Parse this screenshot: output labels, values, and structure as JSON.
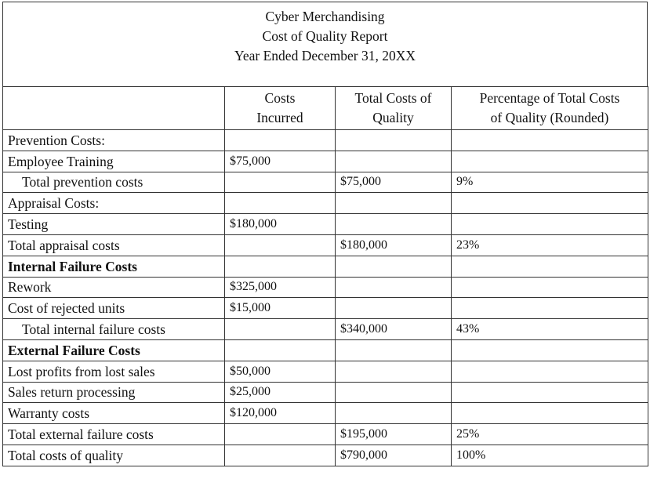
{
  "title": {
    "company": "Cyber Merchandising",
    "report": "Cost of Quality Report",
    "period": "Year Ended December 31, 20XX"
  },
  "columns": [
    "",
    "Costs Incurred",
    "Total Costs of Quality",
    "Percentage of Total Costs of Quality (Rounded)"
  ],
  "columns_lines": [
    [
      "",
      ""
    ],
    [
      "Costs",
      "Incurred"
    ],
    [
      "Total Costs of",
      "Quality"
    ],
    [
      "Percentage of Total Costs",
      "of Quality (Rounded)"
    ]
  ],
  "rows": [
    {
      "label": "Prevention Costs:",
      "incurred": "",
      "total": "",
      "pct": "",
      "style": "section"
    },
    {
      "label": "Employee Training",
      "incurred": "$75,000",
      "total": "",
      "pct": "",
      "style": ""
    },
    {
      "label": "Total prevention costs",
      "incurred": "",
      "total": "$75,000",
      "pct": "9%",
      "style": "indent"
    },
    {
      "label": "Appraisal Costs:",
      "incurred": "",
      "total": "",
      "pct": "",
      "style": "section"
    },
    {
      "label": "Testing",
      "incurred": "$180,000",
      "total": "",
      "pct": "",
      "style": ""
    },
    {
      "label": "Total appraisal costs",
      "incurred": "",
      "total": "$180,000",
      "pct": "23%",
      "style": ""
    },
    {
      "label": "Internal Failure Costs",
      "incurred": "",
      "total": "",
      "pct": "",
      "style": "bold"
    },
    {
      "label": "Rework",
      "incurred": "$325,000",
      "total": "",
      "pct": "",
      "style": ""
    },
    {
      "label": "Cost of rejected units",
      "incurred": "$15,000",
      "total": "",
      "pct": "",
      "style": ""
    },
    {
      "label": "Total internal failure costs",
      "incurred": "",
      "total": "$340,000",
      "pct": "43%",
      "style": "indent"
    },
    {
      "label": "External Failure Costs",
      "incurred": "",
      "total": "",
      "pct": "",
      "style": "bold"
    },
    {
      "label": "Lost profits from lost sales",
      "incurred": "$50,000",
      "total": "",
      "pct": "",
      "style": ""
    },
    {
      "label": "Sales return processing",
      "incurred": "$25,000",
      "total": "",
      "pct": "",
      "style": ""
    },
    {
      "label": "Warranty costs",
      "incurred": "$120,000",
      "total": "",
      "pct": "",
      "style": ""
    },
    {
      "label": "Total external failure costs",
      "incurred": "",
      "total": "$195,000",
      "pct": "25%",
      "style": ""
    },
    {
      "label": "Total costs of quality",
      "incurred": "",
      "total": "$790,000",
      "pct": "100%",
      "style": ""
    }
  ]
}
